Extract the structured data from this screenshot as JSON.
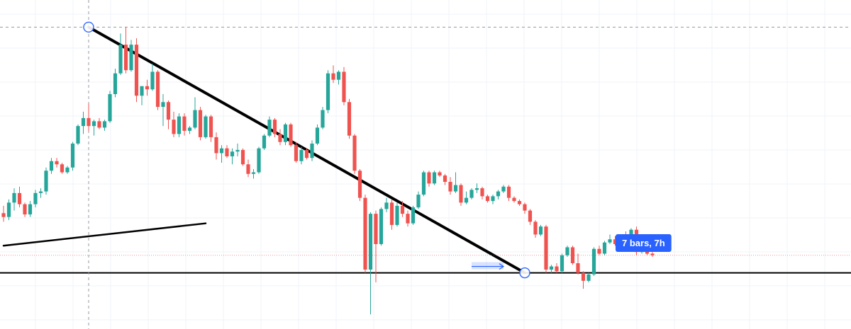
{
  "chart_data": {
    "type": "candlestick",
    "title": "",
    "xlabel": "",
    "ylabel": "",
    "grid": true,
    "x_range": [
      0,
      120
    ],
    "y_range": [
      0,
      100
    ],
    "colors": {
      "up": "#26a69a",
      "down": "#ef5350",
      "trendline": "#000000",
      "grid": "#f0f3fa",
      "crosshair": "#9598a1",
      "measure": "#2962ff",
      "current_price_line": "#ef5350"
    },
    "candles": [
      {
        "o": 35.2,
        "h": 37.5,
        "l": 32.5,
        "c": 34.0
      },
      {
        "o": 34.0,
        "h": 39.5,
        "l": 33.0,
        "c": 38.5
      },
      {
        "o": 38.5,
        "h": 43.0,
        "l": 36.0,
        "c": 41.5
      },
      {
        "o": 41.5,
        "h": 43.5,
        "l": 37.0,
        "c": 38.0
      },
      {
        "o": 38.0,
        "h": 38.5,
        "l": 34.0,
        "c": 34.8
      },
      {
        "o": 34.8,
        "h": 39.0,
        "l": 34.0,
        "c": 38.0
      },
      {
        "o": 38.0,
        "h": 42.5,
        "l": 37.0,
        "c": 41.5
      },
      {
        "o": 41.5,
        "h": 43.0,
        "l": 40.0,
        "c": 42.0
      },
      {
        "o": 42.0,
        "h": 49.5,
        "l": 41.0,
        "c": 48.5
      },
      {
        "o": 48.5,
        "h": 52.5,
        "l": 47.5,
        "c": 51.5
      },
      {
        "o": 51.5,
        "h": 52.5,
        "l": 49.5,
        "c": 50.5
      },
      {
        "o": 50.5,
        "h": 51.0,
        "l": 47.5,
        "c": 48.0
      },
      {
        "o": 48.0,
        "h": 50.0,
        "l": 47.5,
        "c": 49.5
      },
      {
        "o": 49.5,
        "h": 57.5,
        "l": 48.5,
        "c": 57.0
      },
      {
        "o": 57.0,
        "h": 63.0,
        "l": 56.5,
        "c": 62.5
      },
      {
        "o": 62.5,
        "h": 67.0,
        "l": 60.0,
        "c": 65.0
      },
      {
        "o": 65.0,
        "h": 69.5,
        "l": 61.0,
        "c": 62.5
      },
      {
        "o": 62.5,
        "h": 64.5,
        "l": 59.5,
        "c": 64.0
      },
      {
        "o": 64.0,
        "h": 65.0,
        "l": 61.5,
        "c": 62.0
      },
      {
        "o": 62.0,
        "h": 64.5,
        "l": 61.0,
        "c": 64.0
      },
      {
        "o": 64.0,
        "h": 73.5,
        "l": 63.5,
        "c": 72.5
      },
      {
        "o": 72.5,
        "h": 80.5,
        "l": 71.5,
        "c": 79.0
      },
      {
        "o": 79.0,
        "h": 91.5,
        "l": 78.5,
        "c": 88.0
      },
      {
        "o": 88.0,
        "h": 93.5,
        "l": 79.0,
        "c": 80.0
      },
      {
        "o": 80.0,
        "h": 89.5,
        "l": 79.5,
        "c": 88.0
      },
      {
        "o": 88.0,
        "h": 90.0,
        "l": 70.0,
        "c": 72.0
      },
      {
        "o": 72.0,
        "h": 75.0,
        "l": 69.0,
        "c": 75.0
      },
      {
        "o": 75.0,
        "h": 77.0,
        "l": 72.0,
        "c": 74.0
      },
      {
        "o": 74.0,
        "h": 82.0,
        "l": 73.5,
        "c": 79.5
      },
      {
        "o": 79.5,
        "h": 80.0,
        "l": 67.5,
        "c": 68.5
      },
      {
        "o": 68.5,
        "h": 72.5,
        "l": 62.5,
        "c": 70.0
      },
      {
        "o": 70.0,
        "h": 70.5,
        "l": 61.5,
        "c": 64.5
      },
      {
        "o": 64.5,
        "h": 67.0,
        "l": 59.0,
        "c": 60.0
      },
      {
        "o": 60.0,
        "h": 66.5,
        "l": 59.0,
        "c": 65.5
      },
      {
        "o": 65.5,
        "h": 66.5,
        "l": 59.5,
        "c": 61.0
      },
      {
        "o": 61.0,
        "h": 62.5,
        "l": 60.0,
        "c": 62.0
      },
      {
        "o": 62.0,
        "h": 71.5,
        "l": 61.5,
        "c": 67.5
      },
      {
        "o": 67.5,
        "h": 68.5,
        "l": 58.0,
        "c": 59.0
      },
      {
        "o": 59.0,
        "h": 66.0,
        "l": 58.5,
        "c": 65.5
      },
      {
        "o": 65.5,
        "h": 66.0,
        "l": 57.5,
        "c": 59.0
      },
      {
        "o": 59.0,
        "h": 60.5,
        "l": 52.0,
        "c": 54.0
      },
      {
        "o": 54.0,
        "h": 56.5,
        "l": 51.0,
        "c": 55.5
      },
      {
        "o": 55.5,
        "h": 56.5,
        "l": 52.5,
        "c": 53.0
      },
      {
        "o": 53.0,
        "h": 55.5,
        "l": 50.5,
        "c": 54.5
      },
      {
        "o": 54.5,
        "h": 57.0,
        "l": 53.0,
        "c": 55.0
      },
      {
        "o": 55.0,
        "h": 55.5,
        "l": 50.0,
        "c": 50.5
      },
      {
        "o": 50.5,
        "h": 52.0,
        "l": 46.5,
        "c": 47.5
      },
      {
        "o": 47.5,
        "h": 49.0,
        "l": 46.0,
        "c": 48.0
      },
      {
        "o": 48.0,
        "h": 56.0,
        "l": 47.5,
        "c": 55.5
      },
      {
        "o": 55.5,
        "h": 60.0,
        "l": 55.0,
        "c": 59.5
      },
      {
        "o": 59.5,
        "h": 65.5,
        "l": 59.0,
        "c": 64.5
      },
      {
        "o": 64.5,
        "h": 65.0,
        "l": 59.0,
        "c": 60.0
      },
      {
        "o": 60.0,
        "h": 61.5,
        "l": 56.5,
        "c": 57.5
      },
      {
        "o": 57.5,
        "h": 63.5,
        "l": 56.5,
        "c": 63.0
      },
      {
        "o": 63.0,
        "h": 63.5,
        "l": 56.0,
        "c": 56.5
      },
      {
        "o": 56.5,
        "h": 57.5,
        "l": 51.0,
        "c": 51.5
      },
      {
        "o": 51.5,
        "h": 56.0,
        "l": 50.5,
        "c": 55.0
      },
      {
        "o": 55.0,
        "h": 55.5,
        "l": 52.0,
        "c": 52.5
      },
      {
        "o": 52.5,
        "h": 58.0,
        "l": 51.5,
        "c": 57.0
      },
      {
        "o": 57.0,
        "h": 63.0,
        "l": 56.5,
        "c": 62.0
      },
      {
        "o": 62.0,
        "h": 68.5,
        "l": 61.5,
        "c": 67.5
      },
      {
        "o": 67.5,
        "h": 80.0,
        "l": 66.5,
        "c": 79.0
      },
      {
        "o": 79.0,
        "h": 81.5,
        "l": 76.0,
        "c": 77.0
      },
      {
        "o": 77.0,
        "h": 80.0,
        "l": 75.5,
        "c": 79.5
      },
      {
        "o": 79.5,
        "h": 81.0,
        "l": 69.0,
        "c": 70.0
      },
      {
        "o": 70.0,
        "h": 71.0,
        "l": 58.5,
        "c": 59.5
      },
      {
        "o": 59.5,
        "h": 60.0,
        "l": 47.5,
        "c": 48.5
      },
      {
        "o": 48.5,
        "h": 49.0,
        "l": 39.0,
        "c": 40.0
      },
      {
        "o": 40.0,
        "h": 41.0,
        "l": 16.5,
        "c": 17.5
      },
      {
        "o": 17.5,
        "h": 35.5,
        "l": 3.5,
        "c": 35.0
      },
      {
        "o": 35.0,
        "h": 36.0,
        "l": 13.5,
        "c": 25.5
      },
      {
        "o": 25.5,
        "h": 37.0,
        "l": 25.0,
        "c": 36.5
      },
      {
        "o": 36.5,
        "h": 40.0,
        "l": 35.5,
        "c": 38.5
      },
      {
        "o": 38.5,
        "h": 39.5,
        "l": 30.0,
        "c": 31.5
      },
      {
        "o": 31.5,
        "h": 38.5,
        "l": 31.0,
        "c": 37.5
      },
      {
        "o": 37.5,
        "h": 39.0,
        "l": 34.0,
        "c": 35.0
      },
      {
        "o": 35.0,
        "h": 36.0,
        "l": 31.0,
        "c": 32.0
      },
      {
        "o": 32.0,
        "h": 37.5,
        "l": 31.5,
        "c": 37.0
      },
      {
        "o": 37.0,
        "h": 42.0,
        "l": 36.5,
        "c": 41.0
      },
      {
        "o": 41.0,
        "h": 48.5,
        "l": 40.5,
        "c": 48.0
      },
      {
        "o": 48.0,
        "h": 48.5,
        "l": 43.5,
        "c": 44.5
      },
      {
        "o": 44.5,
        "h": 48.5,
        "l": 44.0,
        "c": 48.0
      },
      {
        "o": 48.0,
        "h": 48.5,
        "l": 46.5,
        "c": 47.0
      },
      {
        "o": 47.0,
        "h": 47.5,
        "l": 44.0,
        "c": 45.0
      },
      {
        "o": 45.0,
        "h": 46.5,
        "l": 41.0,
        "c": 42.0
      },
      {
        "o": 42.0,
        "h": 48.0,
        "l": 41.5,
        "c": 44.0
      },
      {
        "o": 44.0,
        "h": 44.5,
        "l": 37.5,
        "c": 38.5
      },
      {
        "o": 38.5,
        "h": 42.0,
        "l": 38.0,
        "c": 40.0
      },
      {
        "o": 40.0,
        "h": 43.0,
        "l": 39.5,
        "c": 42.5
      },
      {
        "o": 42.5,
        "h": 44.5,
        "l": 41.5,
        "c": 43.0
      },
      {
        "o": 43.0,
        "h": 43.5,
        "l": 39.5,
        "c": 40.5
      },
      {
        "o": 40.5,
        "h": 41.0,
        "l": 38.5,
        "c": 39.0
      },
      {
        "o": 39.0,
        "h": 41.0,
        "l": 38.0,
        "c": 40.5
      },
      {
        "o": 40.5,
        "h": 42.5,
        "l": 39.5,
        "c": 42.0
      },
      {
        "o": 42.0,
        "h": 44.0,
        "l": 41.5,
        "c": 43.5
      },
      {
        "o": 43.5,
        "h": 44.0,
        "l": 39.0,
        "c": 40.0
      },
      {
        "o": 40.0,
        "h": 40.5,
        "l": 38.5,
        "c": 39.0
      },
      {
        "o": 39.0,
        "h": 39.5,
        "l": 37.5,
        "c": 38.0
      },
      {
        "o": 38.0,
        "h": 38.5,
        "l": 35.0,
        "c": 36.0
      },
      {
        "o": 36.0,
        "h": 36.5,
        "l": 31.5,
        "c": 32.5
      },
      {
        "o": 32.5,
        "h": 33.0,
        "l": 27.5,
        "c": 28.5
      },
      {
        "o": 28.5,
        "h": 31.5,
        "l": 28.0,
        "c": 31.0
      },
      {
        "o": 31.0,
        "h": 31.5,
        "l": 16.5,
        "c": 17.5
      },
      {
        "o": 17.5,
        "h": 19.0,
        "l": 16.5,
        "c": 18.5
      },
      {
        "o": 18.5,
        "h": 19.5,
        "l": 16.5,
        "c": 17.0
      },
      {
        "o": 17.0,
        "h": 22.5,
        "l": 16.5,
        "c": 22.0
      },
      {
        "o": 22.0,
        "h": 25.0,
        "l": 21.5,
        "c": 24.5
      },
      {
        "o": 24.5,
        "h": 25.0,
        "l": 19.0,
        "c": 19.5
      },
      {
        "o": 19.5,
        "h": 22.5,
        "l": 16.0,
        "c": 16.5
      },
      {
        "o": 16.5,
        "h": 17.0,
        "l": 11.5,
        "c": 14.0
      },
      {
        "o": 14.0,
        "h": 16.5,
        "l": 13.5,
        "c": 16.0
      },
      {
        "o": 16.0,
        "h": 24.5,
        "l": 15.5,
        "c": 24.0
      },
      {
        "o": 24.0,
        "h": 25.0,
        "l": 22.0,
        "c": 22.5
      },
      {
        "o": 22.5,
        "h": 26.5,
        "l": 22.0,
        "c": 26.0
      },
      {
        "o": 26.0,
        "h": 28.5,
        "l": 25.5,
        "c": 27.0
      },
      {
        "o": 27.0,
        "h": 28.0,
        "l": 25.0,
        "c": 25.5
      },
      {
        "o": 25.5,
        "h": 28.5,
        "l": 25.0,
        "c": 28.0
      },
      {
        "o": 28.0,
        "h": 29.5,
        "l": 26.5,
        "c": 27.0
      },
      {
        "o": 27.0,
        "h": 30.5,
        "l": 26.5,
        "c": 30.0
      },
      {
        "o": 30.0,
        "h": 31.0,
        "l": 22.0,
        "c": 23.0
      },
      {
        "o": 23.0,
        "h": 24.5,
        "l": 22.5,
        "c": 23.5
      },
      {
        "o": 23.5,
        "h": 24.0,
        "l": 22.0,
        "c": 22.5
      },
      {
        "o": 22.5,
        "h": 23.0,
        "l": 21.5,
        "c": 22.0
      }
    ],
    "drawings": [
      {
        "type": "trendline",
        "name": "descending-trendline",
        "from": [
          16,
          93.5
        ],
        "to": [
          98,
          16.5
        ]
      },
      {
        "type": "trendline",
        "name": "rising-trendline",
        "from": [
          0,
          25
        ],
        "to": [
          38,
          32
        ]
      },
      {
        "type": "horizontal_line",
        "name": "support-line",
        "y": 16.5
      },
      {
        "type": "horizontal_line",
        "name": "crosshair-horizontal",
        "y": 93.5,
        "style": "dashed"
      },
      {
        "type": "vertical_line",
        "name": "crosshair-vertical",
        "x": 16,
        "style": "dashed"
      },
      {
        "type": "horizontal_line",
        "name": "current-price-line",
        "y": 22.0,
        "style": "dotted"
      },
      {
        "type": "date_range",
        "name": "bar-count-measure",
        "from": 88,
        "to": 94,
        "y": 18.5
      }
    ],
    "annotations": [
      {
        "name": "bar-count-tag",
        "text": "7 bars, 7h"
      }
    ]
  }
}
